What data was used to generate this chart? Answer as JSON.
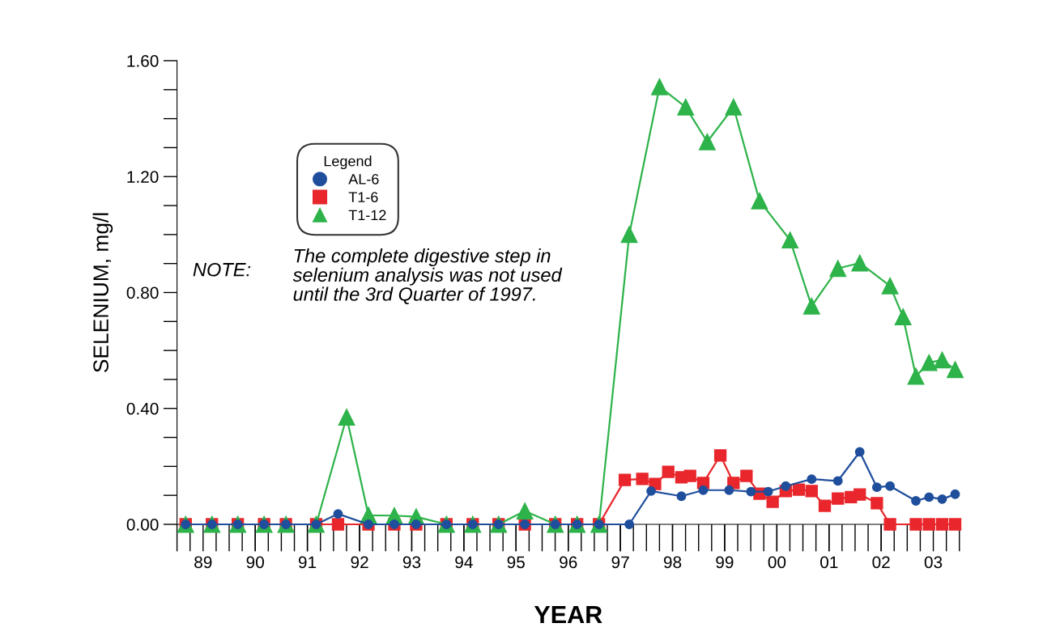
{
  "chart_data": {
    "type": "line",
    "xlabel": "YEAR",
    "ylabel": "SELENIUM, mg/l",
    "legend_title": "Legend",
    "legend": "top left",
    "grid": false,
    "line_style": "solid",
    "xlim": [
      "1989-01-01",
      "2004-01-01"
    ],
    "ylim": [
      0,
      1.6
    ],
    "yticks": [
      {
        "value": 0,
        "label": "0.00"
      },
      {
        "value": 0.4,
        "label": "0.40"
      },
      {
        "value": 0.8,
        "label": "0.80"
      },
      {
        "value": 1.2,
        "label": "1.20"
      },
      {
        "value": 1.6,
        "label": "1.60"
      }
    ],
    "xticks": [
      {
        "value": "1989-07-01",
        "label": "89"
      },
      {
        "value": "1990-07-01",
        "label": "90"
      },
      {
        "value": "1991-07-01",
        "label": "91"
      },
      {
        "value": "1992-07-01",
        "label": "92"
      },
      {
        "value": "1993-07-01",
        "label": "93"
      },
      {
        "value": "1994-07-01",
        "label": "94"
      },
      {
        "value": "1995-07-01",
        "label": "95"
      },
      {
        "value": "1996-07-01",
        "label": "96"
      },
      {
        "value": "1997-07-01",
        "label": "97"
      },
      {
        "value": "1998-07-01",
        "label": "98"
      },
      {
        "value": "1999-07-01",
        "label": "99"
      },
      {
        "value": "2000-07-01",
        "label": "00"
      },
      {
        "value": "2001-07-01",
        "label": "01"
      },
      {
        "value": "2002-07-01",
        "label": "02"
      },
      {
        "value": "2003-07-01",
        "label": "03"
      }
    ],
    "annotations": [
      "NOTE:",
      "The complete digestive step in\nselenium analysis was not used\nuntil the 3rd Quarter of 1997."
    ],
    "series": [
      {
        "name": "AL-6",
        "color": "#1f4e9c",
        "marker": "circle",
        "x": [
          "1989-03",
          "1989-09",
          "1990-03",
          "1990-09",
          "1991-02",
          "1991-09",
          "1992-02",
          "1992-09",
          "1993-03",
          "1993-08",
          "1994-03",
          "1994-09",
          "1995-03",
          "1995-09",
          "1996-04",
          "1996-09",
          "1997-02",
          "1997-09",
          "1998-02",
          "1998-09",
          "1999-02",
          "1999-08",
          "2000-01",
          "2000-05",
          "2000-09",
          "2001-03",
          "2001-09",
          "2002-02",
          "2002-06",
          "2002-09",
          "2003-03",
          "2003-06",
          "2003-09",
          "2003-12"
        ],
        "values": [
          0,
          0,
          0,
          0,
          0,
          0,
          0.036,
          0,
          0,
          0,
          0,
          0,
          0,
          0,
          0,
          0,
          0,
          0,
          0.115,
          0.097,
          0.118,
          0.118,
          0.113,
          0.113,
          0.132,
          0.156,
          0.15,
          0.25,
          0.128,
          0.132,
          0.081,
          0.094,
          0.087,
          0.104
        ]
      },
      {
        "name": "T1-6",
        "color": "#e8262b",
        "marker": "square",
        "x": [
          "1989-03",
          "1989-09",
          "1990-03",
          "1990-09",
          "1991-02",
          "1991-09",
          "1992-02",
          "1992-09",
          "1993-03",
          "1993-08",
          "1994-03",
          "1994-09",
          "1995-03",
          "1995-09",
          "1996-04",
          "1996-09",
          "1997-02",
          "1997-08",
          "1997-12",
          "1998-03",
          "1998-06",
          "1998-09",
          "1998-11",
          "1999-02",
          "1999-06",
          "1999-09",
          "1999-12",
          "2000-03",
          "2000-06",
          "2000-09",
          "2000-12",
          "2001-03",
          "2001-06",
          "2001-09",
          "2001-12",
          "2002-02",
          "2002-06",
          "2002-09",
          "2003-03",
          "2003-06",
          "2003-09",
          "2003-12"
        ],
        "values": [
          0,
          0,
          0,
          0,
          0,
          0,
          0,
          0,
          0,
          0,
          0,
          0,
          0,
          0,
          0,
          0,
          0,
          0.153,
          0.157,
          0.139,
          0.181,
          0.162,
          0.167,
          0.143,
          0.238,
          0.143,
          0.167,
          0.106,
          0.078,
          0.115,
          0.12,
          0.115,
          0.064,
          0.089,
          0.094,
          0.103,
          0.073,
          0,
          0,
          0,
          0,
          0
        ]
      },
      {
        "name": "T1-12",
        "color": "#2db34a",
        "marker": "triangle",
        "x": [
          "1989-03",
          "1989-09",
          "1990-03",
          "1990-09",
          "1991-02",
          "1991-09",
          "1992-04",
          "1992-09",
          "1993-03",
          "1993-08",
          "1994-03",
          "1994-09",
          "1995-03",
          "1995-09",
          "1996-04",
          "1996-09",
          "1997-02",
          "1997-09",
          "1998-04",
          "1998-10",
          "1999-03",
          "1999-09",
          "2000-03",
          "2000-10",
          "2001-03",
          "2001-09",
          "2002-02",
          "2002-09",
          "2002-12",
          "2003-03",
          "2003-06",
          "2003-09",
          "2003-12"
        ],
        "values": [
          0,
          0,
          0,
          0,
          0,
          0,
          0.37,
          0.031,
          0.03,
          0.026,
          0,
          0,
          0,
          0.046,
          0,
          0,
          0,
          1.0,
          1.51,
          1.44,
          1.32,
          1.44,
          1.116,
          0.981,
          0.753,
          0.883,
          0.902,
          0.823,
          0.716,
          0.511,
          0.558,
          0.567,
          0.534
        ]
      }
    ]
  }
}
